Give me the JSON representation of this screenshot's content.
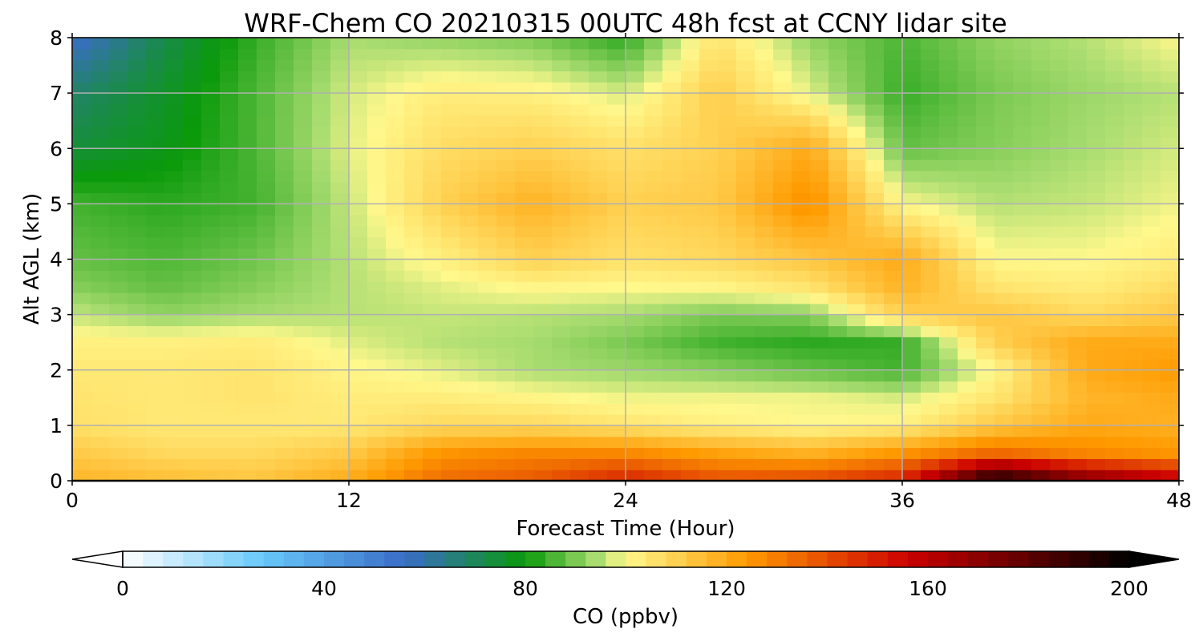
{
  "chart_data": {
    "type": "heatmap",
    "title": "WRF-Chem CO  20210315 00UTC 48h fcst at CCNY lidar site",
    "xlabel": "Forecast Time (Hour)",
    "ylabel": "Alt AGL (km)",
    "xlim": [
      0,
      48
    ],
    "ylim": [
      0,
      8
    ],
    "x_ticks": [
      "0",
      "12",
      "24",
      "36",
      "48"
    ],
    "y_ticks": [
      "0",
      "1",
      "2",
      "3",
      "4",
      "5",
      "6",
      "7",
      "8"
    ],
    "grid": true,
    "colorbar": {
      "label": "CO  (ppbv)",
      "range": [
        0,
        200
      ],
      "ticks": [
        "0",
        "40",
        "80",
        "120",
        "160",
        "200"
      ],
      "extend": "both",
      "colormap": [
        "#ffffff",
        "#66c8f8",
        "#3a6cc8",
        "#0a9a0a",
        "#a8dc70",
        "#fff88c",
        "#ff9a00",
        "#cc0000",
        "#000000"
      ]
    },
    "x": [
      0,
      4,
      8,
      12,
      16,
      20,
      24,
      28,
      32,
      36,
      40,
      44,
      48
    ],
    "y": [
      0,
      0.5,
      1,
      1.5,
      2,
      2.5,
      3,
      3.5,
      4,
      5,
      6,
      7,
      8
    ],
    "values": [
      [
        117,
        115,
        113,
        120,
        134,
        138,
        150,
        140,
        142,
        150,
        200,
        175,
        160
      ],
      [
        112,
        108,
        108,
        112,
        125,
        128,
        128,
        122,
        118,
        125,
        135,
        128,
        125
      ],
      [
        106,
        104,
        104,
        104,
        108,
        108,
        105,
        102,
        100,
        102,
        112,
        120,
        118
      ],
      [
        105,
        104,
        105,
        103,
        103,
        101,
        99,
        99,
        99,
        97,
        105,
        117,
        120
      ],
      [
        104,
        104,
        105,
        101,
        98,
        94,
        93,
        91,
        88,
        85,
        100,
        120,
        124
      ],
      [
        102,
        102,
        103,
        98,
        95,
        94,
        90,
        85,
        83,
        84,
        110,
        120,
        120
      ],
      [
        96,
        92,
        94,
        95,
        96,
        95,
        94,
        90,
        91,
        110,
        113,
        108,
        112
      ],
      [
        91,
        88,
        91,
        95,
        98,
        101,
        100,
        101,
        105,
        118,
        105,
        103,
        107
      ],
      [
        88,
        86,
        89,
        95,
        102,
        110,
        106,
        108,
        113,
        120,
        100,
        100,
        103
      ],
      [
        85,
        83,
        85,
        96,
        110,
        118,
        110,
        112,
        127,
        100,
        95,
        96,
        99
      ],
      [
        74,
        78,
        86,
        98,
        107,
        110,
        106,
        110,
        120,
        88,
        91,
        94,
        97
      ],
      [
        68,
        76,
        86,
        97,
        103,
        102,
        97,
        111,
        98,
        84,
        90,
        93,
        95
      ],
      [
        55,
        72,
        84,
        94,
        92,
        90,
        83,
        105,
        92,
        86,
        92,
        95,
        100
      ]
    ]
  }
}
